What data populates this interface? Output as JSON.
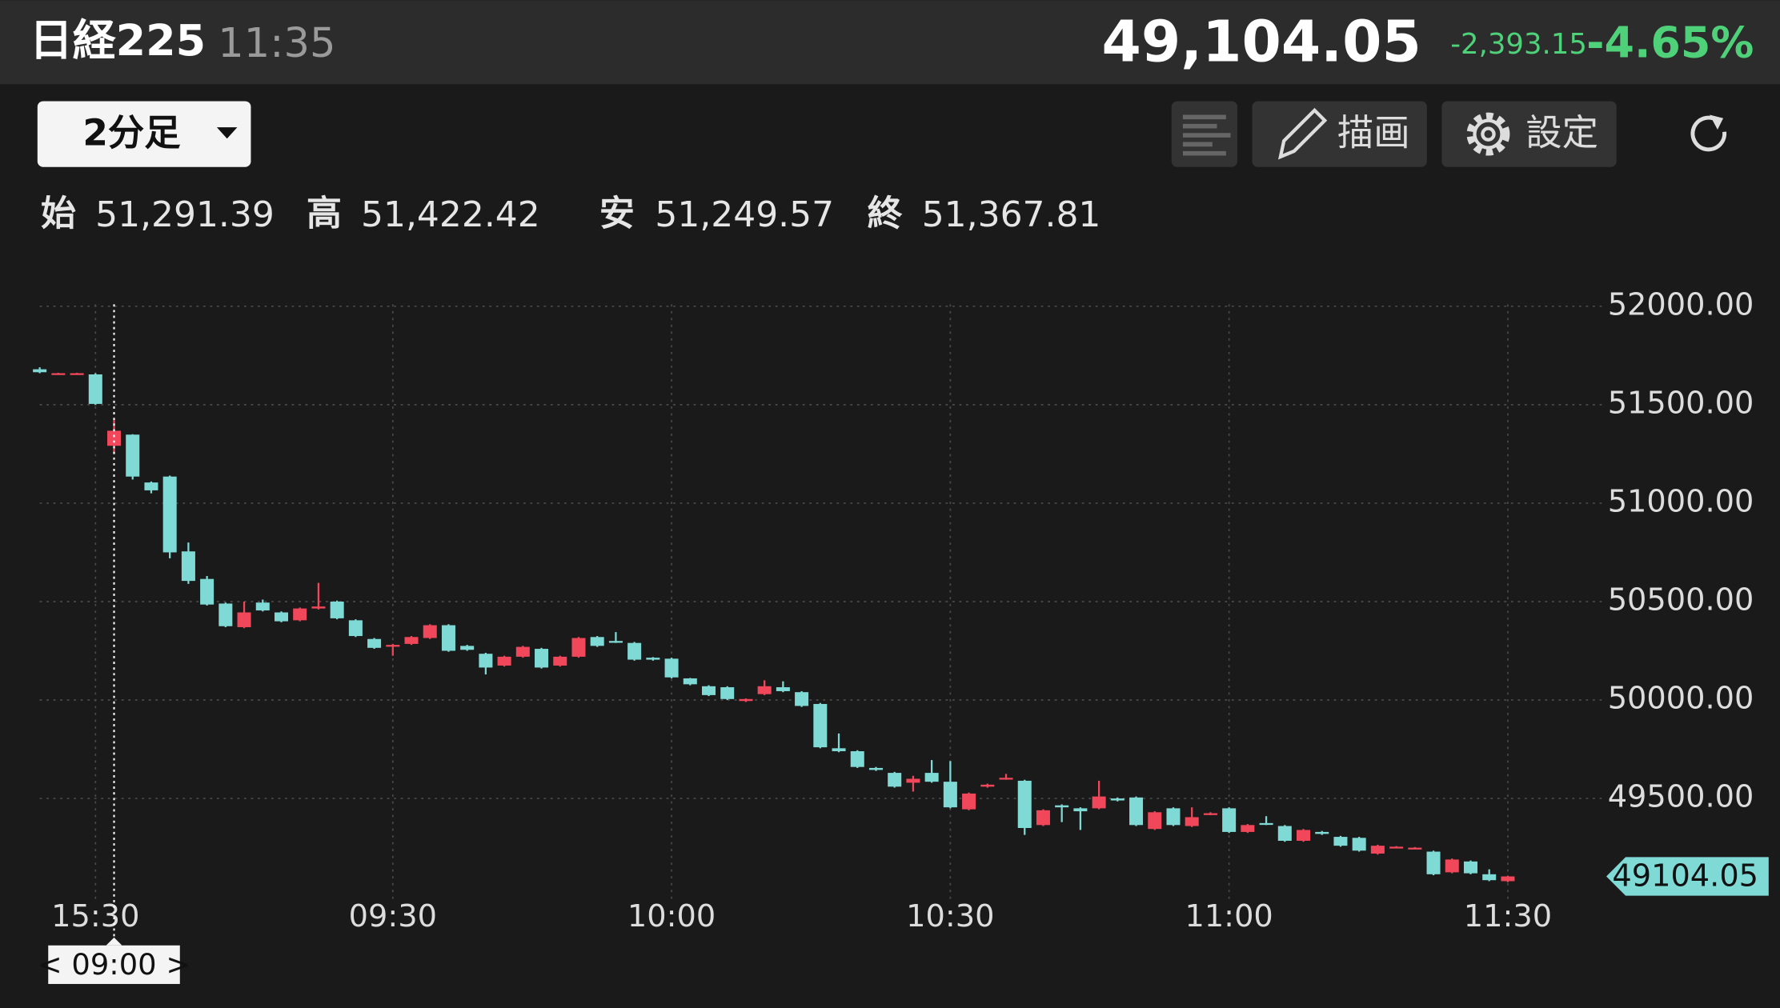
{
  "header": {
    "title": "日経225",
    "time": "11:35",
    "price": "49,104.05",
    "change": "-2,393.15",
    "change_pct": "-4.65%"
  },
  "toolbar": {
    "interval": "2分足",
    "draw": "描画",
    "settings": "設定"
  },
  "ohlc": {
    "open_label": "始",
    "open": "51,291.39",
    "high_label": "高",
    "high": "51,422.42",
    "low_label": "安",
    "low": "51,249.57",
    "close_label": "終",
    "close": "51,367.81"
  },
  "crosshair_label": "< 09:00 >",
  "chart_data": {
    "type": "candlestick",
    "categories": [
      null,
      null,
      null,
      "15:30",
      null,
      null,
      null,
      null,
      null,
      null,
      null,
      null,
      null,
      null,
      null,
      null,
      null,
      null,
      null,
      "09:30",
      null,
      null,
      null,
      null,
      null,
      null,
      null,
      null,
      null,
      null,
      null,
      null,
      null,
      null,
      "10:00",
      null,
      null,
      null,
      null,
      null,
      null,
      null,
      null,
      null,
      null,
      null,
      null,
      null,
      null,
      "10:30",
      null,
      null,
      null,
      null,
      null,
      null,
      null,
      null,
      null,
      null,
      null,
      null,
      null,
      null,
      "11:00",
      null,
      null,
      null,
      null,
      null,
      null,
      null,
      null,
      null,
      null,
      null,
      null,
      null,
      null,
      "11:30"
    ],
    "open": [
      51680,
      51660,
      51660,
      51654,
      51291.39,
      51348,
      51105,
      51135,
      50755,
      50615,
      50490,
      50370,
      50495,
      50445,
      50405,
      50465,
      50500,
      50405,
      50310,
      50275,
      50285,
      50315,
      50380,
      50275,
      50235,
      50175,
      50220,
      50260,
      50175,
      50220,
      50320,
      50300,
      50290,
      50215,
      50210,
      50110,
      50070,
      50065,
      49995,
      50030,
      50065,
      50040,
      49980,
      49755,
      49740,
      49655,
      49630,
      49580,
      49630,
      49585,
      49445,
      49560,
      49600,
      49590,
      49365,
      49465,
      49450,
      49450,
      49500,
      49505,
      49345,
      49450,
      49360,
      49420,
      49450,
      49330,
      49375,
      49360,
      49285,
      49330,
      49305,
      49300,
      49220,
      49255,
      49250,
      49230,
      49125,
      49180,
      49115,
      49080
    ],
    "high": [
      51690,
      51662,
      51662,
      51660,
      51422.42,
      51350,
      51110,
      51140,
      50800,
      50630,
      50495,
      50500,
      50510,
      50450,
      50470,
      50595,
      50505,
      50410,
      50315,
      50285,
      50325,
      50385,
      50385,
      50280,
      50240,
      50225,
      50275,
      50265,
      50225,
      50320,
      50325,
      50345,
      50295,
      50218,
      50215,
      50112,
      50075,
      50070,
      50008,
      50100,
      50095,
      50045,
      49985,
      49830,
      49745,
      49660,
      49635,
      49615,
      49695,
      49690,
      49530,
      49575,
      49625,
      49595,
      49445,
      49470,
      49455,
      49590,
      49505,
      49510,
      49435,
      49455,
      49455,
      49430,
      49455,
      49370,
      49410,
      49365,
      49345,
      49335,
      49310,
      49305,
      49265,
      49258,
      49253,
      49235,
      49195,
      49185,
      49140,
      49108
    ],
    "low": [
      51660,
      51658,
      51658,
      51500,
      51249.57,
      51120,
      51050,
      50720,
      50590,
      50480,
      50370,
      50365,
      50450,
      50395,
      50400,
      50460,
      50410,
      50320,
      50260,
      50225,
      50280,
      50310,
      50245,
      50250,
      50130,
      50170,
      50215,
      50160,
      50170,
      50215,
      50270,
      50290,
      50200,
      50200,
      50110,
      50075,
      50020,
      50000,
      49990,
      50025,
      50040,
      49965,
      49755,
      49735,
      49655,
      49640,
      49555,
      49535,
      49580,
      49450,
      49440,
      49555,
      49595,
      49315,
      49360,
      49380,
      49340,
      49445,
      49485,
      49360,
      49340,
      49360,
      49355,
      49415,
      49325,
      49325,
      49365,
      49280,
      49280,
      49315,
      49255,
      49230,
      49215,
      49250,
      49245,
      49110,
      49120,
      49115,
      49080,
      49075
    ],
    "close": [
      51665,
      51660,
      51660,
      51504,
      51367.81,
      51135,
      51065,
      50750,
      50605,
      50485,
      50375,
      50445,
      50455,
      50400,
      50465,
      50475,
      50415,
      50325,
      50265,
      50280,
      50320,
      50380,
      50250,
      50255,
      50165,
      50220,
      50270,
      50165,
      50220,
      50315,
      50275,
      50295,
      50205,
      50205,
      50115,
      50080,
      50025,
      50005,
      50005,
      50070,
      50045,
      49970,
      49760,
      49740,
      49660,
      49645,
      49560,
      49600,
      49585,
      49455,
      49525,
      49570,
      49605,
      49350,
      49440,
      49455,
      49435,
      49510,
      49490,
      49365,
      49430,
      49365,
      49405,
      49425,
      49330,
      49365,
      49370,
      49285,
      49340,
      49320,
      49260,
      49235,
      49260,
      49255,
      49250,
      49115,
      49190,
      49120,
      49085,
      49104.05
    ],
    "up_color": "#f0475a",
    "down_color": "#7fdad6",
    "ylim": [
      48990,
      52010
    ],
    "yticks": [
      {
        "value": 49500,
        "label": "49500.00"
      },
      {
        "value": 50000,
        "label": "50000.00"
      },
      {
        "value": 50500,
        "label": "50500.00"
      },
      {
        "value": 51000,
        "label": "51000.00"
      },
      {
        "value": 51500,
        "label": "51500.00"
      },
      {
        "value": 52000,
        "label": "52000.00"
      }
    ],
    "last_price": 49104.05,
    "grid": true
  }
}
